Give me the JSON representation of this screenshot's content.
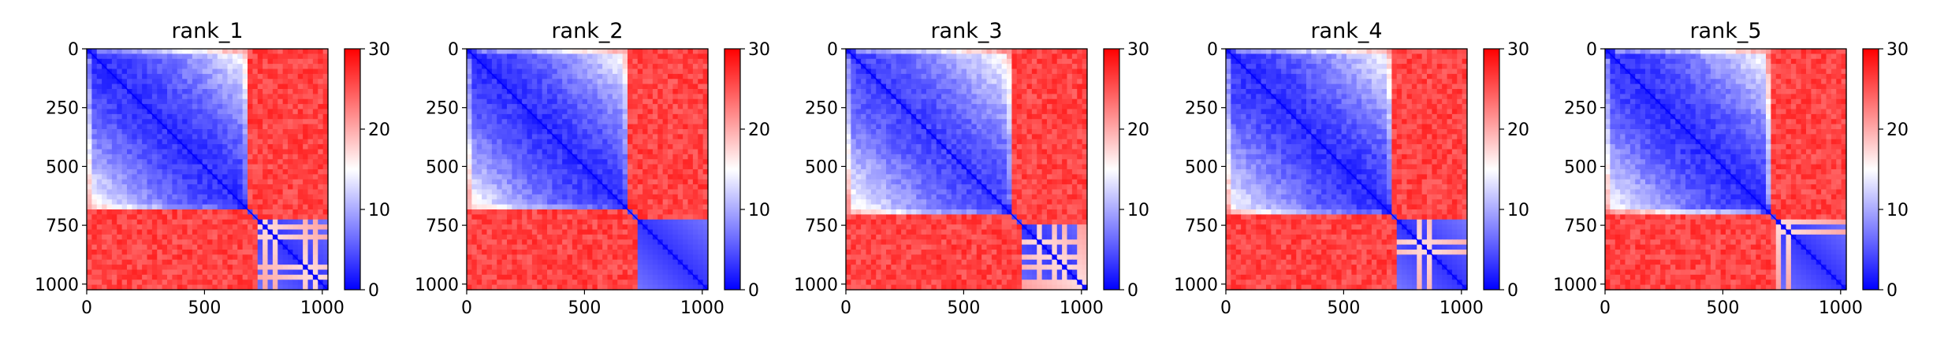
{
  "figure": {
    "panel_titles": [
      "rank_1",
      "rank_2",
      "rank_3",
      "rank_4",
      "rank_5"
    ]
  },
  "chart_data": [
    {
      "type": "heatmap",
      "title": "rank_1",
      "xlabel": "",
      "ylabel": "",
      "xlim": [
        0,
        1024
      ],
      "ylim": [
        1024,
        0
      ],
      "x_ticks": [
        "0",
        "500",
        "1000"
      ],
      "y_ticks": [
        "0",
        "250",
        "500",
        "750",
        "1000"
      ],
      "colorbar": {
        "range": [
          0,
          30
        ],
        "ticks": [
          "0",
          "10",
          "20",
          "30"
        ],
        "colormap": "bwr"
      },
      "blocks": [
        {
          "start": 0,
          "end": 690,
          "value": 3
        },
        {
          "start": 720,
          "end": 1024,
          "value": 3
        }
      ],
      "off_block_value": 30,
      "boundary": 700
    },
    {
      "type": "heatmap",
      "title": "rank_2",
      "xlabel": "",
      "ylabel": "",
      "xlim": [
        0,
        1024
      ],
      "ylim": [
        1024,
        0
      ],
      "x_ticks": [
        "0",
        "500",
        "1000"
      ],
      "y_ticks": [
        "0",
        "250",
        "500",
        "750",
        "1000"
      ],
      "colorbar": {
        "range": [
          0,
          30
        ],
        "ticks": [
          "0",
          "10",
          "20",
          "30"
        ],
        "colormap": "bwr"
      },
      "blocks": [
        {
          "start": 0,
          "end": 690,
          "value": 3
        },
        {
          "start": 720,
          "end": 1024,
          "value": 3
        }
      ],
      "off_block_value": 30,
      "boundary": 700
    },
    {
      "type": "heatmap",
      "title": "rank_3",
      "xlabel": "",
      "ylabel": "",
      "xlim": [
        0,
        1024
      ],
      "ylim": [
        1024,
        0
      ],
      "x_ticks": [
        "0",
        "500",
        "1000"
      ],
      "y_ticks": [
        "0",
        "250",
        "500",
        "750",
        "1000"
      ],
      "colorbar": {
        "range": [
          0,
          30
        ],
        "ticks": [
          "0",
          "10",
          "20",
          "30"
        ],
        "colormap": "bwr"
      },
      "blocks": [
        {
          "start": 0,
          "end": 710,
          "value": 4
        },
        {
          "start": 740,
          "end": 1024,
          "value": 3
        }
      ],
      "off_block_value": 30,
      "boundary": 720
    },
    {
      "type": "heatmap",
      "title": "rank_4",
      "xlabel": "",
      "ylabel": "",
      "xlim": [
        0,
        1024
      ],
      "ylim": [
        1024,
        0
      ],
      "x_ticks": [
        "0",
        "500",
        "1000"
      ],
      "y_ticks": [
        "0",
        "250",
        "500",
        "750",
        "1000"
      ],
      "colorbar": {
        "range": [
          0,
          30
        ],
        "ticks": [
          "0",
          "10",
          "20",
          "30"
        ],
        "colormap": "bwr"
      },
      "blocks": [
        {
          "start": 0,
          "end": 710,
          "value": 3
        },
        {
          "start": 730,
          "end": 1024,
          "value": 3
        }
      ],
      "off_block_value": 30,
      "boundary": 715
    },
    {
      "type": "heatmap",
      "title": "rank_5",
      "xlabel": "",
      "ylabel": "",
      "xlim": [
        0,
        1024
      ],
      "ylim": [
        1024,
        0
      ],
      "x_ticks": [
        "0",
        "500",
        "1000"
      ],
      "y_ticks": [
        "0",
        "250",
        "500",
        "750",
        "1000"
      ],
      "colorbar": {
        "range": [
          0,
          30
        ],
        "ticks": [
          "0",
          "10",
          "20",
          "30"
        ],
        "colormap": "bwr"
      },
      "blocks": [
        {
          "start": 0,
          "end": 700,
          "value": 3
        },
        {
          "start": 730,
          "end": 1024,
          "value": 3
        }
      ],
      "off_block_value": 30,
      "boundary": 715
    }
  ]
}
